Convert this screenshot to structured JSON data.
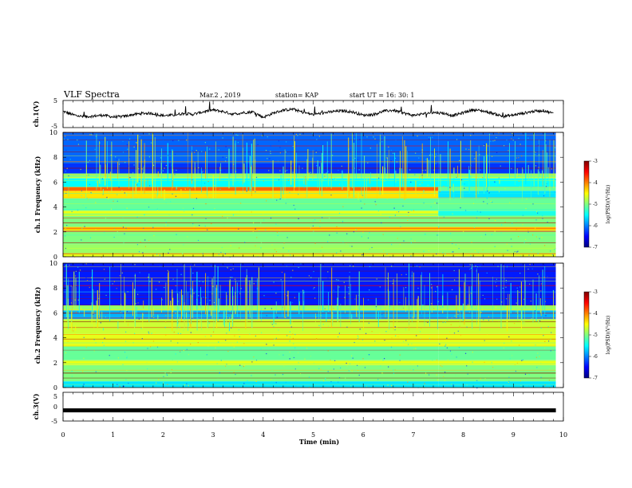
{
  "header": {
    "title": "VLF Spectra",
    "date": "Mar.2 , 2019",
    "station": "station= KAP",
    "start": "start UT = 16: 30: 1"
  },
  "colors": {
    "colormap": [
      "#00007f",
      "#0000ff",
      "#0080ff",
      "#00ffff",
      "#80ff80",
      "#ffff00",
      "#ff8000",
      "#ff0000",
      "#7f0000"
    ],
    "trace": "#000000",
    "axes": "#000000"
  },
  "chart_data": [
    {
      "type": "line",
      "name": "ch.1 waveform",
      "ylabel": "ch.1(V)",
      "ylim": [
        -5,
        5
      ],
      "yticks": [
        "5",
        "-5"
      ],
      "xlim": [
        0,
        10
      ],
      "x": [
        0.0,
        0.2,
        0.4,
        0.6,
        0.8,
        1.0,
        1.2,
        1.4,
        1.6,
        1.8,
        2.0,
        2.2,
        2.4,
        2.6,
        2.8,
        3.0,
        3.2,
        3.4,
        3.6,
        3.8,
        4.0,
        4.2,
        4.4,
        4.6,
        4.8,
        5.0,
        5.2,
        5.4,
        5.6,
        5.8,
        6.0,
        6.2,
        6.4,
        6.6,
        6.8,
        7.0,
        7.2,
        7.4,
        7.6,
        7.8,
        8.0,
        8.2,
        8.4,
        8.6,
        8.8,
        9.0,
        9.2,
        9.4,
        9.6,
        9.8
      ],
      "y": [
        1.0,
        -0.3,
        -1.0,
        -0.8,
        -0.4,
        -1.1,
        -0.9,
        -0.2,
        0.3,
        0.2,
        -0.6,
        -0.4,
        0.2,
        -0.1,
        0.8,
        1.5,
        0.9,
        -0.1,
        0.5,
        0.8,
        -1.2,
        0.3,
        1.4,
        1.8,
        0.6,
        -0.2,
        0.4,
        0.9,
        1.2,
        0.7,
        -0.4,
        -0.2,
        1.0,
        1.4,
        0.4,
        -0.5,
        0.1,
        0.6,
        0.3,
        -0.6,
        0.5,
        1.6,
        1.1,
        0.2,
        -0.9,
        -0.4,
        0.3,
        1.0,
        1.3,
        0.2
      ]
    },
    {
      "type": "heatmap",
      "name": "ch.1 spectrogram",
      "ylabel": "ch.1 Frequency (kHz)",
      "xlim": [
        0,
        10
      ],
      "ylim": [
        0,
        10
      ],
      "yticks": [
        "0",
        "2",
        "4",
        "6",
        "8",
        "10"
      ],
      "colorbar": {
        "label": "log(PSD)(V²/Hz)",
        "ticks": [
          "-3",
          "-4",
          "-5",
          "-6",
          "-7"
        ],
        "range": [
          -7,
          -3
        ]
      },
      "data_end_min": 9.85,
      "regime_change_min": 7.5,
      "bands": [
        {
          "f0": 0.0,
          "f1": 0.3,
          "level": -4.6
        },
        {
          "f0": 0.3,
          "f1": 1.0,
          "level": -4.9
        },
        {
          "f0": 1.0,
          "f1": 2.1,
          "level": -5.0
        },
        {
          "f0": 2.1,
          "f1": 2.4,
          "level": -4.3
        },
        {
          "f0": 2.4,
          "f1": 3.3,
          "level": -5.0
        },
        {
          "f0": 3.3,
          "f1": 3.7,
          "level": -4.6
        },
        {
          "f0": 3.7,
          "f1": 4.7,
          "level": -5.1
        },
        {
          "f0": 4.7,
          "f1": 5.3,
          "level": -4.4
        },
        {
          "f0": 5.3,
          "f1": 5.6,
          "level": -3.9
        },
        {
          "f0": 5.6,
          "f1": 6.3,
          "level": -5.5
        },
        {
          "f0": 6.3,
          "f1": 6.7,
          "level": -5.0
        },
        {
          "f0": 6.7,
          "f1": 7.5,
          "level": -6.3
        },
        {
          "f0": 7.5,
          "f1": 10.0,
          "level": -6.1
        }
      ]
    },
    {
      "type": "heatmap",
      "name": "ch.2 spectrogram",
      "ylabel": "ch.2 Frequency (kHz)",
      "xlim": [
        0,
        10
      ],
      "ylim": [
        0,
        10
      ],
      "yticks": [
        "0",
        "2",
        "4",
        "6",
        "8",
        "10"
      ],
      "colorbar": {
        "label": "log(PSD)(V²/Hz)",
        "ticks": [
          "-3",
          "-4",
          "-5",
          "-6",
          "-7"
        ],
        "range": [
          -7,
          -3
        ]
      },
      "data_end_min": 9.85,
      "regime_change_min": 7.5,
      "bands": [
        {
          "f0": 0.0,
          "f1": 0.5,
          "level": -5.6
        },
        {
          "f0": 0.5,
          "f1": 1.8,
          "level": -5.0
        },
        {
          "f0": 1.8,
          "f1": 2.2,
          "level": -4.6
        },
        {
          "f0": 2.2,
          "f1": 3.3,
          "level": -5.1
        },
        {
          "f0": 3.3,
          "f1": 4.3,
          "level": -4.6
        },
        {
          "f0": 4.3,
          "f1": 5.5,
          "level": -4.7
        },
        {
          "f0": 5.5,
          "f1": 6.2,
          "level": -5.8
        },
        {
          "f0": 6.2,
          "f1": 6.6,
          "level": -4.9
        },
        {
          "f0": 6.6,
          "f1": 10.0,
          "level": -6.4
        }
      ]
    },
    {
      "type": "line",
      "name": "ch.3 waveform",
      "ylabel": "ch.3(V)",
      "ylim": [
        -5,
        5
      ],
      "yticks": [
        "5",
        "0",
        "-5"
      ],
      "xlim": [
        0,
        10
      ],
      "x": [
        0,
        9.85
      ],
      "y": [
        -1.3,
        -1.3
      ]
    }
  ],
  "xaxis": {
    "label": "Time (min)",
    "ticks": [
      "0",
      "1",
      "2",
      "3",
      "4",
      "5",
      "6",
      "7",
      "8",
      "9",
      "10"
    ]
  }
}
